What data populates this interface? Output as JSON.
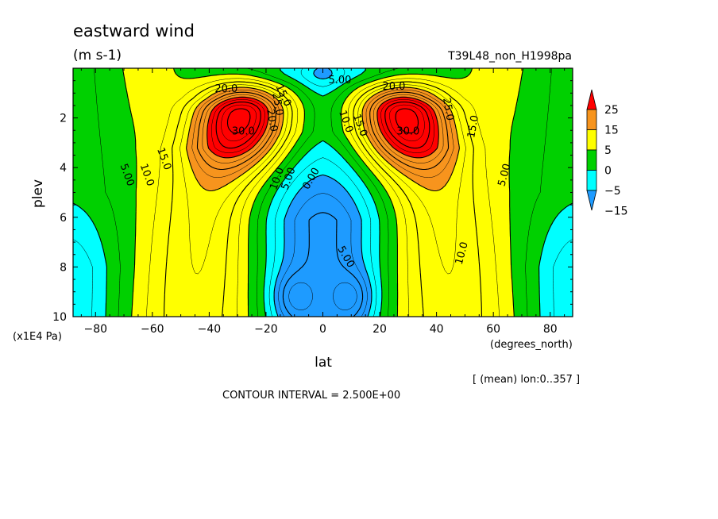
{
  "chart_data": {
    "type": "heatmap",
    "title": "eastward wind",
    "units": "(m s-1)",
    "run_label": "T39L48_non_H1998pa",
    "ylabel": "plev",
    "y_units": "(x1E4 Pa)",
    "xlabel": "lat",
    "x_units": "(degrees_north)",
    "mean_note": "[ (mean) lon:0..357 ]",
    "contour_interval": "CONTOUR INTERVAL = 2.500E+00",
    "xlim": [
      -87.9,
      87.9
    ],
    "ylim": [
      10,
      0
    ],
    "xticks": [
      -80,
      -60,
      -40,
      -20,
      0,
      20,
      40,
      60,
      80
    ],
    "yticks": [
      2,
      4,
      6,
      8,
      10
    ],
    "jets": [
      {
        "lat": -28,
        "plev": 1.8,
        "peak": 34
      },
      {
        "lat": 28,
        "plev": 1.8,
        "peak": 34
      }
    ],
    "contour_labels": [
      {
        "text": "20.0",
        "lat": -34,
        "plev": 0.85,
        "rot": 0
      },
      {
        "text": "15.0",
        "lat": -14,
        "plev": 1.1,
        "rot": 65
      },
      {
        "text": "25.0",
        "lat": -16,
        "plev": 1.45,
        "rot": 80
      },
      {
        "text": "30.0",
        "lat": -28,
        "plev": 2.55,
        "rot": 0
      },
      {
        "text": "20.0",
        "lat": -18,
        "plev": 2.1,
        "rot": 80
      },
      {
        "text": "5.00",
        "lat": -69,
        "plev": 4.3,
        "rot": 70
      },
      {
        "text": "10.0",
        "lat": -62,
        "plev": 4.3,
        "rot": 70
      },
      {
        "text": "15.0",
        "lat": -56,
        "plev": 3.65,
        "rot": 70
      },
      {
        "text": "10.0",
        "lat": -16,
        "plev": 4.45,
        "rot": -70
      },
      {
        "text": "5.00",
        "lat": -12,
        "plev": 4.45,
        "rot": -70
      },
      {
        "text": "0.00",
        "lat": -4,
        "plev": 4.45,
        "rot": -60
      },
      {
        "text": "5.00",
        "lat": 6,
        "plev": 0.5,
        "rot": 0
      },
      {
        "text": "20.0",
        "lat": 25,
        "plev": 0.75,
        "rot": 0
      },
      {
        "text": "10.0",
        "lat": 8,
        "plev": 2.15,
        "rot": 70
      },
      {
        "text": "15.0",
        "lat": 13,
        "plev": 2.3,
        "rot": 70
      },
      {
        "text": "30.0",
        "lat": 30,
        "plev": 2.55,
        "rot": 0
      },
      {
        "text": "25.0",
        "lat": 44,
        "plev": 1.65,
        "rot": 80
      },
      {
        "text": "15.0",
        "lat": 53,
        "plev": 2.35,
        "rot": -80
      },
      {
        "text": "5.00",
        "lat": 64,
        "plev": 4.3,
        "rot": -75
      },
      {
        "text": "10.0",
        "lat": 49,
        "plev": 7.45,
        "rot": -75
      },
      {
        "text": "5.00",
        "lat": 8,
        "plev": 7.6,
        "rot": 60
      }
    ],
    "colorbar": {
      "labels": [
        "25",
        "15",
        "5",
        "0",
        "-5",
        "-15"
      ],
      "colors": [
        "#ff0000",
        "#f7941d",
        "#ffff00",
        "#00d000",
        "#00ffff",
        "#1e9bff"
      ]
    }
  }
}
